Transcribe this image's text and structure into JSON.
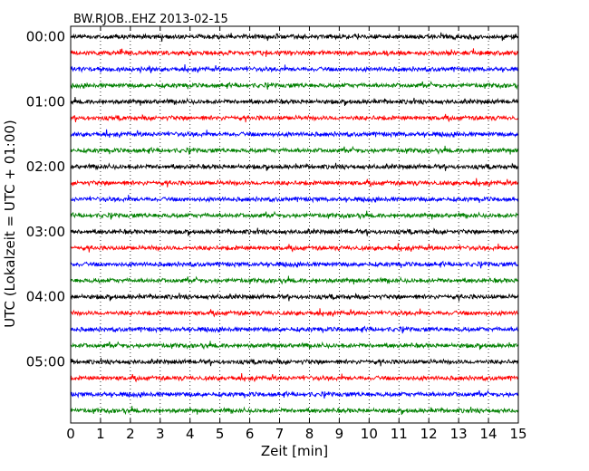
{
  "chart_data": {
    "type": "line",
    "title": "BW.RJOB..EHZ 2013-02-15",
    "xlabel": "Zeit  [min]",
    "ylabel": "UTC (Lokalzeit = UTC + 01:00)",
    "xlim": [
      0,
      15
    ],
    "x_ticks": [
      "0",
      "1",
      "2",
      "3",
      "4",
      "5",
      "6",
      "7",
      "8",
      "9",
      "10",
      "11",
      "12",
      "13",
      "14",
      "15"
    ],
    "y_ticks": [
      "00:00",
      "01:00",
      "02:00",
      "03:00",
      "04:00",
      "05:00"
    ],
    "traces_per_hour": 4,
    "trace_count": 24,
    "vertical_grid": "dotted",
    "colors": [
      "#000000",
      "#ff0000",
      "#0000ff",
      "#008000"
    ]
  }
}
